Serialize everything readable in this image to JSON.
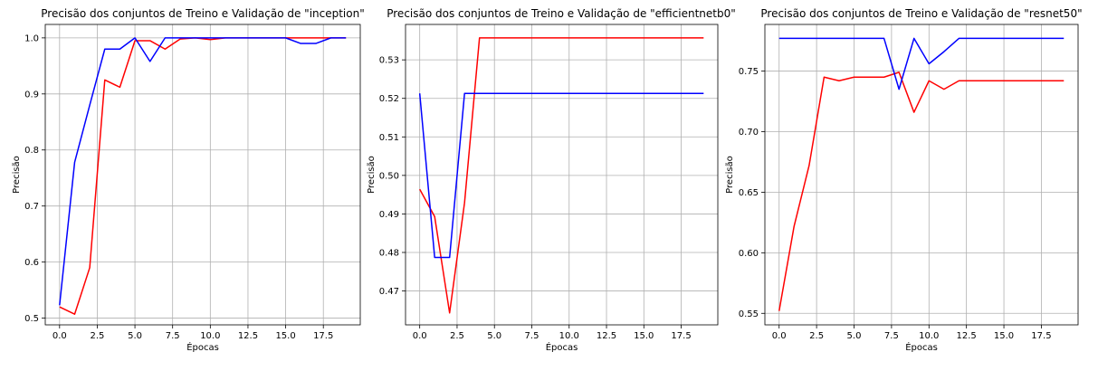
{
  "chart_data": [
    {
      "type": "line",
      "title": "Precisão dos conjuntos de Treino e Validação de \"inception\"",
      "xlabel": "Épocas",
      "ylabel": "Precisão",
      "xlim": [
        -0.95,
        19.95
      ],
      "ylim": [
        0.488,
        1.024
      ],
      "xticks": [
        0.0,
        2.5,
        5.0,
        7.5,
        10.0,
        12.5,
        15.0,
        17.5
      ],
      "xtick_labels": [
        "0.0",
        "2.5",
        "5.0",
        "7.5",
        "10.0",
        "12.5",
        "15.0",
        "17.5"
      ],
      "yticks": [
        0.5,
        0.6,
        0.7,
        0.8,
        0.9,
        1.0
      ],
      "ytick_labels": [
        "0.5",
        "0.6",
        "0.7",
        "0.8",
        "0.9",
        "1.0"
      ],
      "grid": true,
      "x": [
        0,
        1,
        2,
        3,
        4,
        5,
        6,
        7,
        8,
        9,
        10,
        11,
        12,
        13,
        14,
        15,
        16,
        17,
        18,
        19
      ],
      "series": [
        {
          "color": "#ff0000",
          "values": [
            0.52,
            0.507,
            0.59,
            0.925,
            0.912,
            0.995,
            0.995,
            0.98,
            0.998,
            1.0,
            0.997,
            1.0,
            1.0,
            1.0,
            1.0,
            1.0,
            1.0,
            1.0,
            1.0,
            1.0
          ]
        },
        {
          "color": "#0000ff",
          "values": [
            0.523,
            0.778,
            0.88,
            0.98,
            0.98,
            1.0,
            0.958,
            1.0,
            1.0,
            1.0,
            1.0,
            1.0,
            1.0,
            1.0,
            1.0,
            1.0,
            0.99,
            0.99,
            1.0,
            1.0
          ]
        }
      ]
    },
    {
      "type": "line",
      "title": "Precisão dos conjuntos de Treino e Validação de \"efficientnetb0\"",
      "xlabel": "Épocas",
      "ylabel": "Precisão",
      "xlim": [
        -0.95,
        19.95
      ],
      "ylim": [
        0.4612,
        0.5392
      ],
      "xticks": [
        0.0,
        2.5,
        5.0,
        7.5,
        10.0,
        12.5,
        15.0,
        17.5
      ],
      "xtick_labels": [
        "0.0",
        "2.5",
        "5.0",
        "7.5",
        "10.0",
        "12.5",
        "15.0",
        "17.5"
      ],
      "yticks": [
        0.47,
        0.48,
        0.49,
        0.5,
        0.51,
        0.52,
        0.53
      ],
      "ytick_labels": [
        "0.47",
        "0.48",
        "0.49",
        "0.50",
        "0.51",
        "0.52",
        "0.53"
      ],
      "grid": true,
      "x": [
        0,
        1,
        2,
        3,
        4,
        5,
        6,
        7,
        8,
        9,
        10,
        11,
        12,
        13,
        14,
        15,
        16,
        17,
        18,
        19
      ],
      "series": [
        {
          "color": "#ff0000",
          "values": [
            0.4964,
            0.4893,
            0.4643,
            0.4929,
            0.5357,
            0.5357,
            0.5357,
            0.5357,
            0.5357,
            0.5357,
            0.5357,
            0.5357,
            0.5357,
            0.5357,
            0.5357,
            0.5357,
            0.5357,
            0.5357,
            0.5357,
            0.5357
          ]
        },
        {
          "color": "#0000ff",
          "values": [
            0.5213,
            0.4787,
            0.4787,
            0.5213,
            0.5213,
            0.5213,
            0.5213,
            0.5213,
            0.5213,
            0.5213,
            0.5213,
            0.5213,
            0.5213,
            0.5213,
            0.5213,
            0.5213,
            0.5213,
            0.5213,
            0.5213,
            0.5213
          ]
        }
      ]
    },
    {
      "type": "line",
      "title": "Precisão dos conjuntos de Treino e Validação de \"resnet50\"",
      "xlabel": "Épocas",
      "ylabel": "Precisão",
      "xlim": [
        -0.95,
        19.95
      ],
      "ylim": [
        0.5405,
        0.7885
      ],
      "xticks": [
        0.0,
        2.5,
        5.0,
        7.5,
        10.0,
        12.5,
        15.0,
        17.5
      ],
      "xtick_labels": [
        "0.0",
        "2.5",
        "5.0",
        "7.5",
        "10.0",
        "12.5",
        "15.0",
        "17.5"
      ],
      "yticks": [
        0.55,
        0.6,
        0.65,
        0.7,
        0.75
      ],
      "ytick_labels": [
        "0.55",
        "0.60",
        "0.65",
        "0.70",
        "0.75"
      ],
      "grid": true,
      "x": [
        0,
        1,
        2,
        3,
        4,
        5,
        6,
        7,
        8,
        9,
        10,
        11,
        12,
        13,
        14,
        15,
        16,
        17,
        18,
        19
      ],
      "series": [
        {
          "color": "#ff0000",
          "values": [
            0.552,
            0.622,
            0.672,
            0.745,
            0.742,
            0.745,
            0.745,
            0.745,
            0.749,
            0.716,
            0.742,
            0.735,
            0.742,
            0.742,
            0.742,
            0.742,
            0.742,
            0.742,
            0.742,
            0.742
          ]
        },
        {
          "color": "#0000ff",
          "values": [
            0.777,
            0.777,
            0.777,
            0.777,
            0.777,
            0.777,
            0.777,
            0.777,
            0.735,
            0.777,
            0.756,
            0.766,
            0.777,
            0.777,
            0.777,
            0.777,
            0.777,
            0.777,
            0.777,
            0.777
          ]
        }
      ]
    }
  ]
}
